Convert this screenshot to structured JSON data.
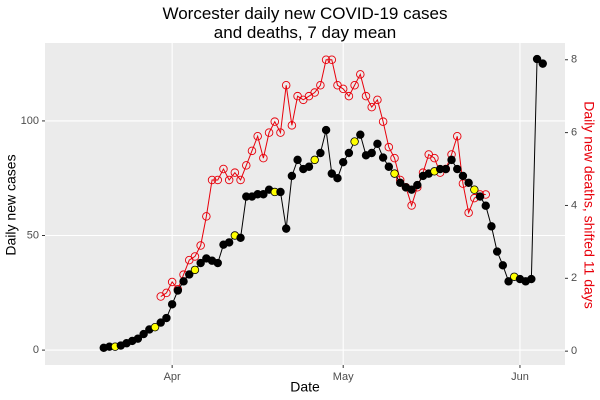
{
  "chart_data": {
    "type": "line",
    "title": "Worcester daily new COVID-19 cases\nand deaths, 7 day mean",
    "x_label": "Date",
    "y_label": "Daily new cases",
    "y2_label": "Daily new deaths, shifted 11 days",
    "xlim": [
      -22.3,
      68.9
    ],
    "xticks": [
      {
        "value": 0,
        "label": "Apr"
      },
      {
        "value": 30,
        "label": "May"
      },
      {
        "value": 61,
        "label": "Jun"
      }
    ],
    "ylim": [
      -6.5,
      134
    ],
    "yticks": [
      0,
      50,
      100
    ],
    "y2lim": [
      -0.38,
      8.46
    ],
    "y2ticks": [
      0,
      2,
      4,
      6,
      8
    ],
    "grid": true,
    "y2_color": "#e8000b",
    "series": [
      {
        "name": "cases",
        "color": "#000000",
        "point_fill": "#000000",
        "highlight_color": "#ffff00",
        "highlight_x": [
          -10,
          -3,
          4,
          11,
          18,
          25,
          32,
          39,
          46,
          53,
          60
        ],
        "x": [
          -12,
          -11,
          -10,
          -9,
          -8,
          -7,
          -6,
          -5,
          -4,
          -3,
          -2,
          -1,
          0,
          1,
          2,
          3,
          4,
          5,
          6,
          7,
          8,
          9,
          10,
          11,
          12,
          13,
          14,
          15,
          16,
          17,
          18,
          19,
          20,
          21,
          22,
          23,
          24,
          25,
          26,
          27,
          28,
          29,
          30,
          31,
          32,
          33,
          34,
          35,
          36,
          37,
          38,
          39,
          40,
          41,
          42,
          43,
          44,
          45,
          46,
          47,
          48,
          49,
          50,
          51,
          52,
          53,
          54,
          55,
          56,
          57,
          58,
          59,
          60,
          61,
          62,
          63,
          64,
          65
        ],
        "values": [
          1,
          1.5,
          1.5,
          2,
          3,
          4,
          5,
          7,
          9,
          10,
          12,
          14,
          20,
          26,
          30,
          33,
          35,
          38,
          40,
          39,
          38,
          46,
          47,
          50,
          49,
          67,
          67,
          68,
          68,
          70,
          69,
          69,
          53,
          76,
          83,
          79,
          80,
          83,
          86,
          96,
          77,
          75,
          82,
          86,
          91,
          94,
          85,
          86,
          90,
          84,
          80,
          77,
          73,
          71,
          70,
          72,
          76,
          77,
          78,
          79,
          79,
          83,
          79,
          76,
          73,
          70,
          67,
          63,
          54,
          43,
          37,
          30,
          32,
          31,
          30,
          31,
          127,
          125
        ]
      },
      {
        "name": "deaths",
        "axis": "y2",
        "color": "#e8000b",
        "point_fill": "none",
        "x": [
          -2,
          -1,
          0,
          1,
          2,
          3,
          4,
          5,
          6,
          7,
          8,
          9,
          10,
          11,
          12,
          13,
          14,
          15,
          16,
          17,
          18,
          19,
          20,
          21,
          22,
          23,
          24,
          25,
          26,
          27,
          28,
          29,
          30,
          31,
          32,
          33,
          34,
          35,
          36,
          37,
          38,
          39,
          40,
          41,
          42,
          43,
          44,
          45,
          46,
          47,
          48,
          49,
          50,
          51,
          52,
          53,
          54,
          55
        ],
        "values": [
          1.5,
          1.6,
          1.9,
          1.7,
          2.1,
          2.5,
          2.6,
          2.9,
          3.7,
          4.7,
          4.7,
          5.0,
          4.7,
          4.9,
          4.7,
          5.1,
          5.5,
          5.9,
          5.3,
          6.0,
          6.3,
          6.0,
          7.3,
          6.2,
          7.0,
          6.9,
          7.0,
          7.1,
          7.3,
          8.0,
          8.0,
          7.3,
          7.2,
          7.0,
          7.3,
          7.6,
          7.0,
          6.7,
          6.9,
          6.3,
          5.6,
          5.3,
          4.7,
          4.5,
          4.0,
          4.5,
          4.9,
          5.4,
          5.3,
          4.9,
          5.0,
          5.4,
          5.9,
          4.6,
          3.8,
          4.2,
          4.3,
          4.3
        ]
      }
    ]
  }
}
